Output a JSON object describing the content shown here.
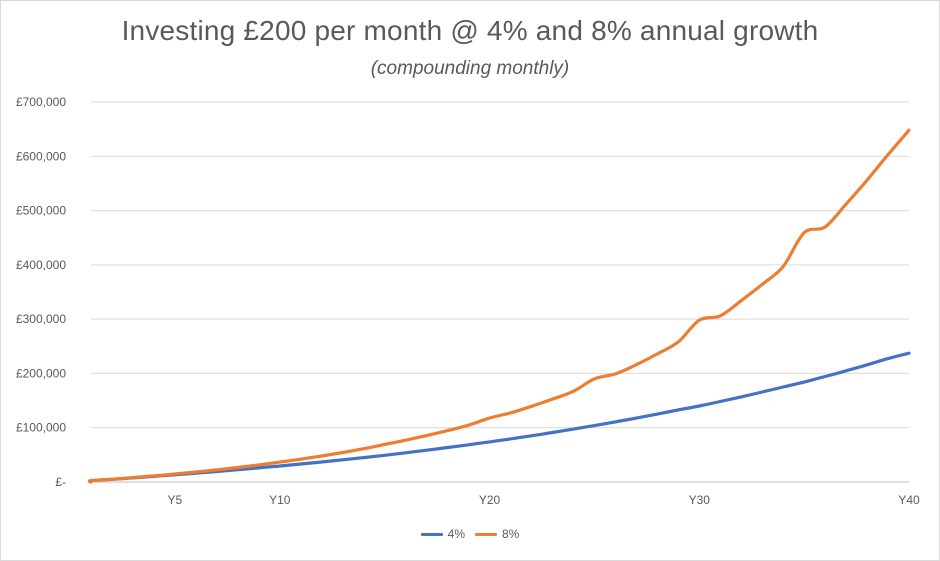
{
  "chart_data": {
    "type": "line",
    "title": "Investing £200 per month @ 4% and 8% annual growth",
    "subtitle": "(compounding monthly)",
    "xlabel": "",
    "ylabel": "",
    "x_range": [
      1,
      40
    ],
    "x_ticks": [
      {
        "value": 5,
        "label": "Y5"
      },
      {
        "value": 10,
        "label": "Y10"
      },
      {
        "value": 20,
        "label": "Y20"
      },
      {
        "value": 30,
        "label": "Y30"
      },
      {
        "value": 40,
        "label": "Y40"
      }
    ],
    "ylim": [
      0,
      700000
    ],
    "y_ticks": [
      {
        "value": 0,
        "label": "£-"
      },
      {
        "value": 100000,
        "label": "£100,000"
      },
      {
        "value": 200000,
        "label": "£200,000"
      },
      {
        "value": 300000,
        "label": "£300,000"
      },
      {
        "value": 400000,
        "label": "£400,000"
      },
      {
        "value": 500000,
        "label": "£500,000"
      },
      {
        "value": 600000,
        "label": "£600,000"
      },
      {
        "value": 700000,
        "label": "£700,000"
      }
    ],
    "grid": "horizontal",
    "legend_position": "bottom",
    "x": [
      1,
      2,
      3,
      4,
      5,
      6,
      7,
      8,
      9,
      10,
      11,
      12,
      13,
      14,
      15,
      16,
      17,
      18,
      19,
      20,
      21,
      22,
      23,
      24,
      25,
      26,
      27,
      28,
      29,
      30,
      31,
      32,
      33,
      34,
      35,
      36,
      37,
      38,
      39,
      40
    ],
    "series": [
      {
        "name": "4%",
        "color": "#4472c4",
        "values": [
          2444,
          4990,
          7640,
          10398,
          13260,
          16270,
          19400,
          22660,
          26060,
          29450,
          33110,
          36920,
          40880,
          45010,
          49210,
          53770,
          58520,
          63470,
          68610,
          73800,
          79370,
          85170,
          91210,
          97500,
          103900,
          110680,
          117750,
          125110,
          132770,
          140000,
          148230,
          156820,
          165760,
          175080,
          184100,
          194260,
          204840,
          215870,
          227350,
          237180
        ]
      },
      {
        "name": "8%",
        "color": "#ed7d31",
        "values": [
          2490,
          5186,
          8105,
          11266,
          14695,
          18410,
          22410,
          26750,
          31450,
          36590,
          42050,
          47960,
          54370,
          61320,
          69200,
          76990,
          85450,
          94620,
          104550,
          117800,
          127350,
          139500,
          152700,
          167000,
          190000,
          199200,
          216000,
          236000,
          258000,
          298000,
          306000,
          334000,
          364000,
          397000,
          459000,
          470000,
          512000,
          556000,
          603000,
          648000
        ]
      }
    ]
  }
}
